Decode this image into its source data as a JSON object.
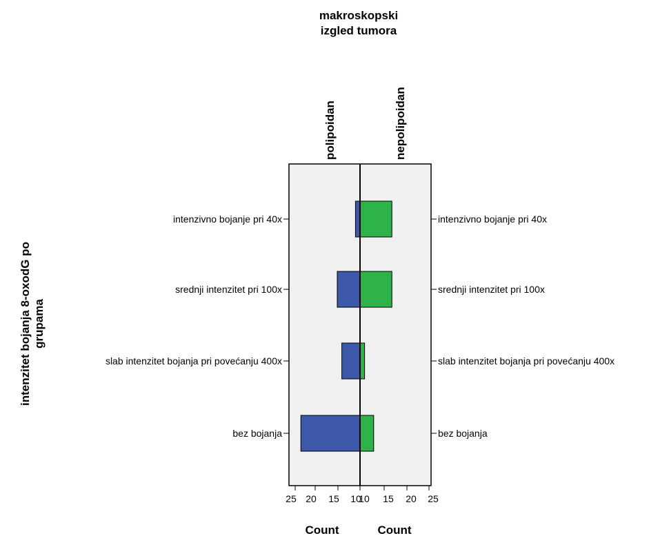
{
  "chart_data": {
    "type": "bar",
    "orientation": "horizontal",
    "layout": "population-pyramid",
    "title": [
      "makroskopski",
      "izgled tumora"
    ],
    "ylabel": [
      "intenzitet bojanja 8-oxodG po",
      "grupama"
    ],
    "categories": [
      "intenzivno bojanje pri 40x",
      "srednji intenzitet pri 100x",
      "slab intenzitet bojanja pri povećanju 400x",
      "bez bojanja"
    ],
    "series": [
      {
        "name": "polipoidan",
        "side": "left",
        "color": "#3d58a8",
        "values": [
          1,
          5,
          4,
          13
        ]
      },
      {
        "name": "nepolipoidan",
        "side": "right",
        "color": "#2db34a",
        "values": [
          7,
          7,
          1,
          3
        ]
      }
    ],
    "xlabel_left": "Count",
    "xlabel_right": "Count",
    "left_ticks": [
      "25",
      "20",
      "15",
      "10"
    ],
    "right_ticks": [
      "10",
      "15",
      "20",
      "25"
    ],
    "plot_background": "#f0f0f0",
    "grid": false
  }
}
